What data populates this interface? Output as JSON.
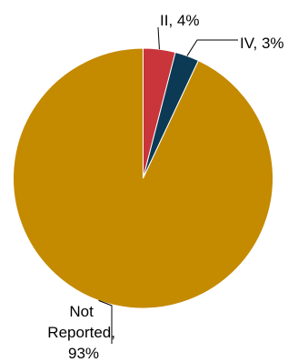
{
  "chart_data": {
    "type": "pie",
    "title": "",
    "slices": [
      {
        "label": "II",
        "value": 4,
        "display": "II, 4%",
        "color": "#C8353B"
      },
      {
        "label": "IV",
        "value": 3,
        "display": "IV, 3%",
        "color": "#0C3A55"
      },
      {
        "label": "Not Reported",
        "value": 93,
        "display_lines": [
          "Not",
          "Reported,",
          "93%"
        ],
        "color": "#C48A00"
      }
    ],
    "legend": "none",
    "label_style": "outside-with-leader-lines"
  }
}
